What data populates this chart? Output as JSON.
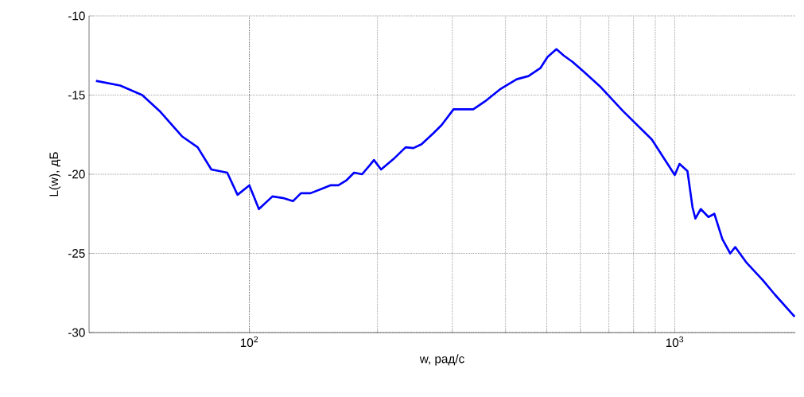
{
  "chart_data": {
    "type": "line",
    "xlabel": "w, рад/с",
    "ylabel": "L(w), дБ",
    "log": "x",
    "grid": true,
    "xlim": [
      42,
      1920
    ],
    "ylim": [
      -30,
      -10
    ],
    "xticks": [
      {
        "value": 100,
        "label": "10$^{2}$"
      },
      {
        "value": 1000,
        "label": "10$^{3}$"
      }
    ],
    "yticks": [
      -30,
      -25,
      -20,
      -15,
      -10
    ],
    "series": [
      {
        "color": "#0000ff",
        "x": [
          43.6,
          49.7,
          56,
          61.5,
          69.4,
          75.6,
          81.4,
          88.7,
          93.8,
          100,
          105.3,
          113.3,
          119.8,
          126.6,
          132.2,
          139.2,
          148.5,
          155,
          161.9,
          168.9,
          176.3,
          184.1,
          192.3,
          196.3,
          204,
          218,
          233,
          243,
          254,
          271,
          283,
          302,
          336,
          358,
          390,
          425,
          453,
          483,
          502,
          527,
          548,
          575,
          610,
          670,
          755,
          883,
          1000,
          1026,
          1071,
          1101,
          1118,
          1151,
          1200,
          1239,
          1294,
          1350,
          1387,
          1476,
          1612,
          1719,
          1914
        ],
        "values": [
          -14.1,
          -14.4,
          -15.0,
          -16.0,
          -17.6,
          -18.3,
          -19.7,
          -19.9,
          -21.3,
          -20.7,
          -22.2,
          -21.4,
          -21.5,
          -21.7,
          -21.2,
          -21.2,
          -20.9,
          -20.7,
          -20.7,
          -20.4,
          -19.9,
          -20.0,
          -19.4,
          -19.1,
          -19.7,
          -19.05,
          -18.3,
          -18.35,
          -18.1,
          -17.4,
          -16.9,
          -15.9,
          -15.9,
          -15.4,
          -14.6,
          -14.0,
          -13.8,
          -13.3,
          -12.6,
          -12.1,
          -12.5,
          -12.9,
          -13.5,
          -14.5,
          -16.0,
          -17.8,
          -20.05,
          -19.35,
          -19.8,
          -22.1,
          -22.8,
          -22.2,
          -22.7,
          -22.5,
          -24.1,
          -25.0,
          -24.6,
          -25.6,
          -26.7,
          -27.6,
          -29.0
        ]
      }
    ]
  }
}
